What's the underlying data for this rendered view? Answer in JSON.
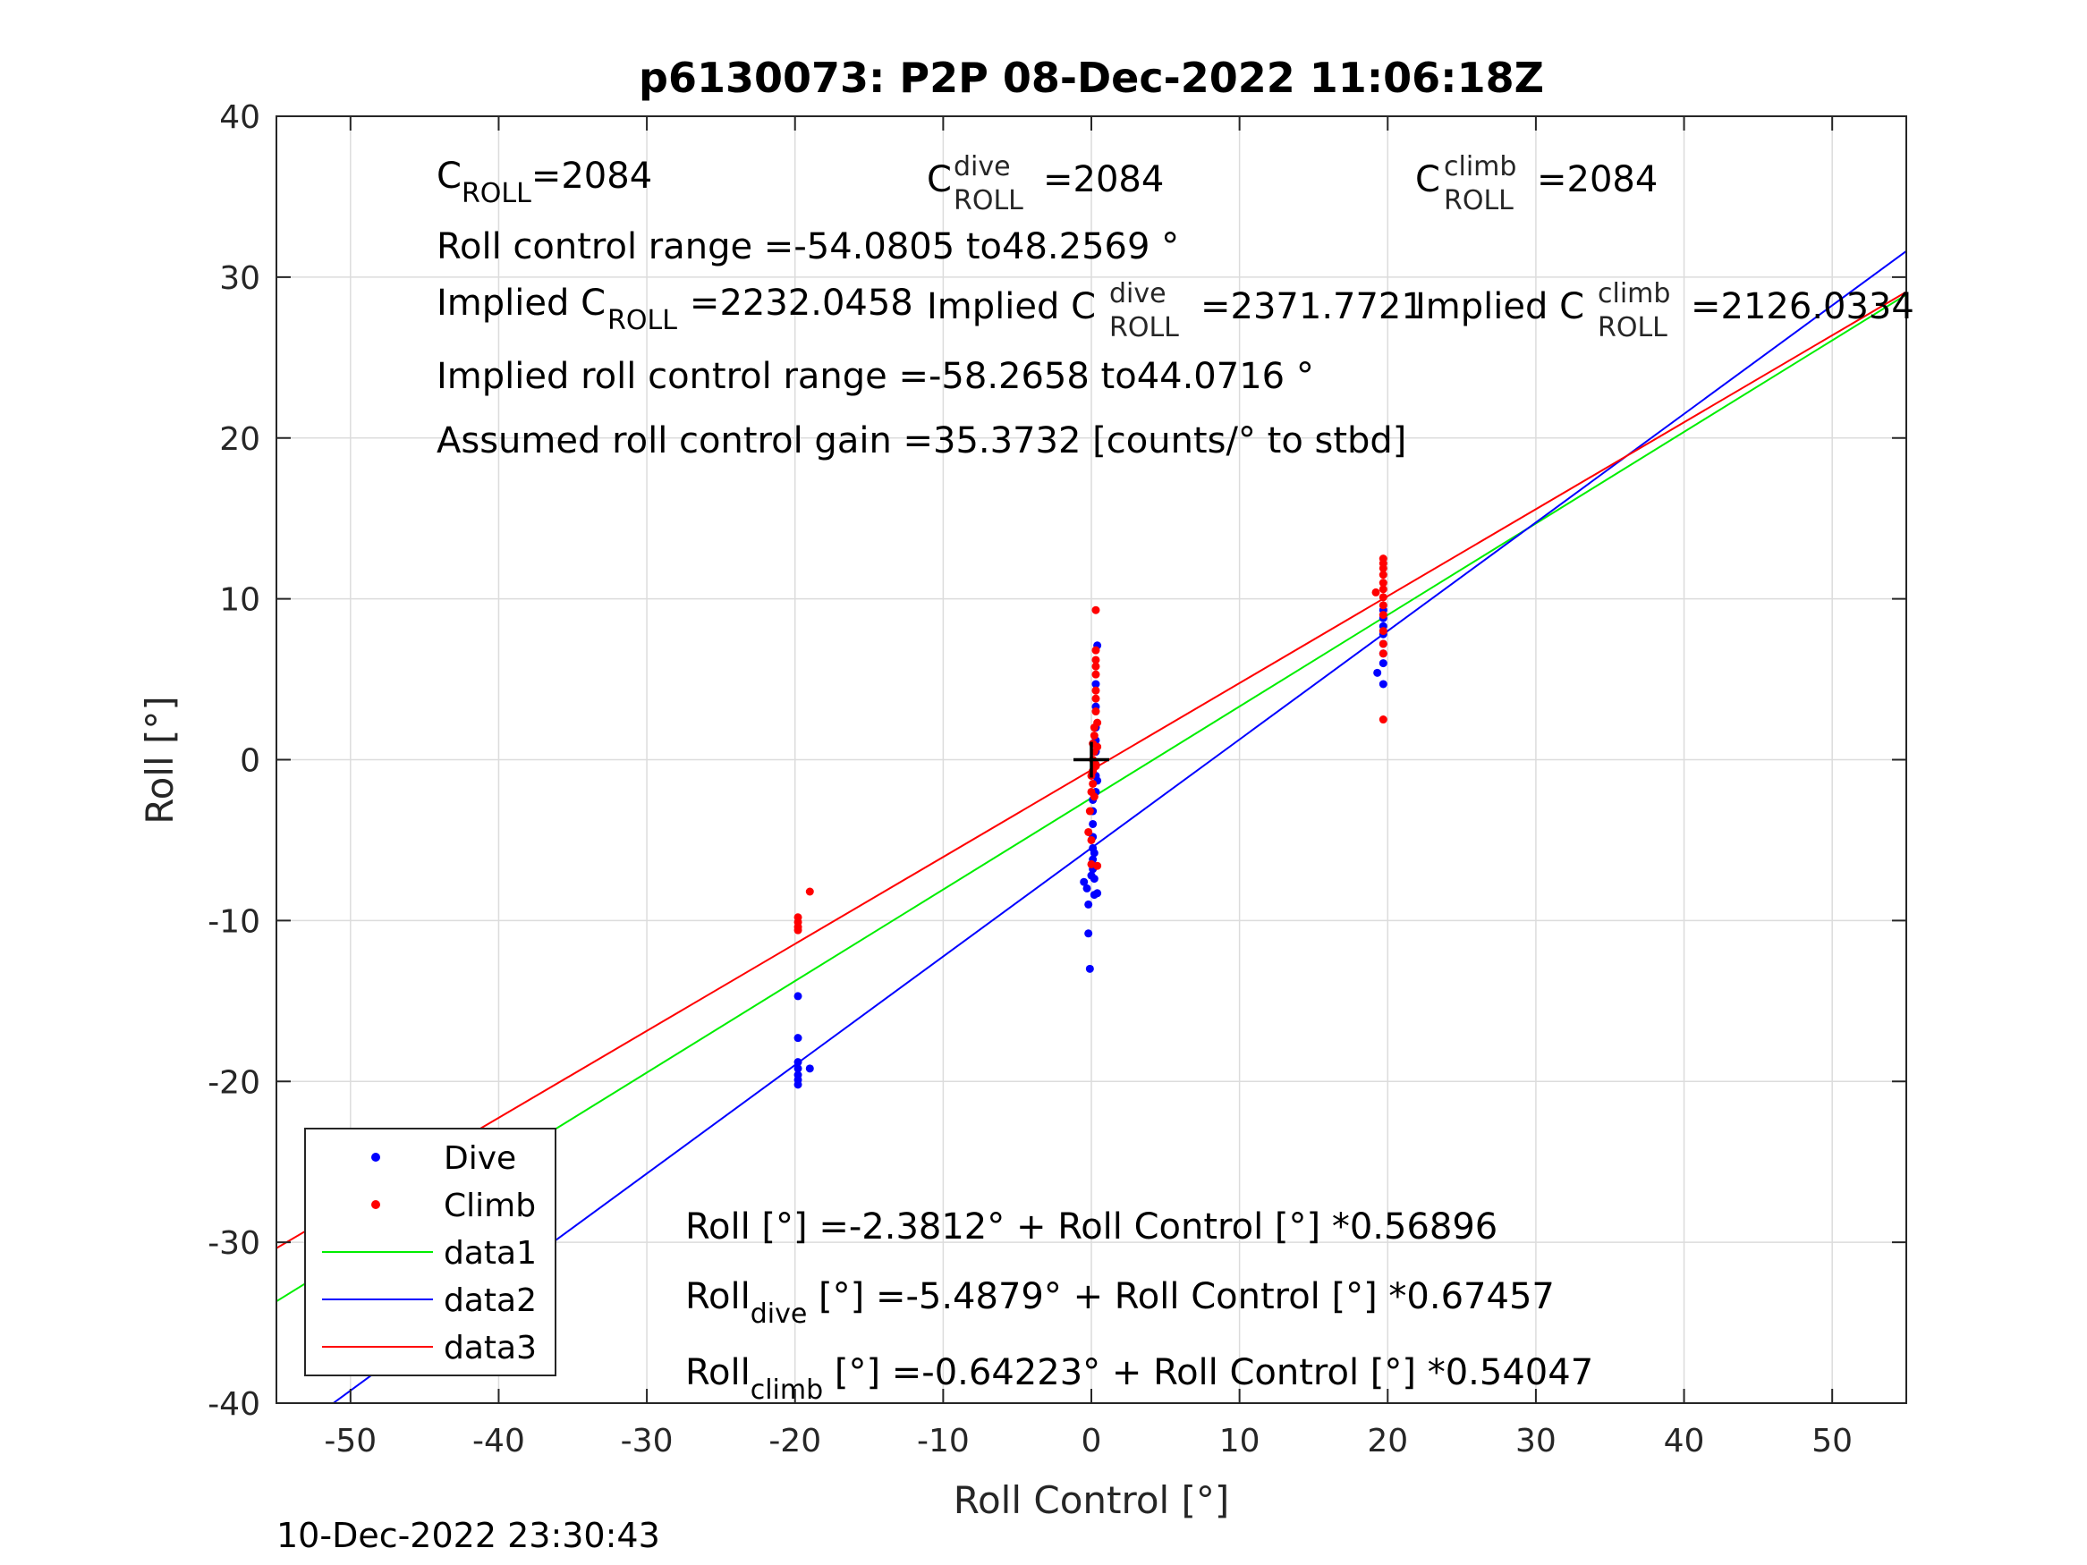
{
  "chart_data": {
    "type": "scatter",
    "title": "p6130073: P2P 08-Dec-2022 11:06:18Z",
    "xlabel": "Roll Control [°]",
    "ylabel": "Roll [°]",
    "xlim": [
      -55,
      55
    ],
    "ylim": [
      -40,
      40
    ],
    "xticks": [
      -50,
      -40,
      -30,
      -20,
      -10,
      0,
      10,
      20,
      30,
      40,
      50
    ],
    "yticks": [
      -40,
      -30,
      -20,
      -10,
      0,
      10,
      20,
      30,
      40
    ],
    "grid": true,
    "legend_position": "bottom-left",
    "footer": "10-Dec-2022 23:30:43",
    "colors": {
      "dive": "#0000ff",
      "climb": "#ff0000",
      "data1": "#00ee00",
      "data2": "#0000ff",
      "data3": "#ff0000",
      "origin": "#000000"
    },
    "series": [
      {
        "name": "Dive",
        "kind": "points",
        "color": "#0000ff",
        "points": [
          [
            -19.8,
            -14.7
          ],
          [
            -19.8,
            -17.3
          ],
          [
            -19.8,
            -18.8
          ],
          [
            -19.8,
            -19.2
          ],
          [
            -19.8,
            -19.6
          ],
          [
            -19.8,
            -19.9
          ],
          [
            -19.8,
            -20.2
          ],
          [
            -19.0,
            -19.2
          ],
          [
            -0.5,
            -7.6
          ],
          [
            -0.3,
            -8.0
          ],
          [
            -0.2,
            -9.0
          ],
          [
            -0.2,
            -10.8
          ],
          [
            -0.1,
            -13.0
          ],
          [
            0.0,
            -7.2
          ],
          [
            0.1,
            -6.8
          ],
          [
            0.1,
            -6.2
          ],
          [
            0.1,
            -5.5
          ],
          [
            0.1,
            -4.8
          ],
          [
            0.1,
            -4.0
          ],
          [
            0.1,
            -3.2
          ],
          [
            0.1,
            -2.5
          ],
          [
            0.2,
            -7.4
          ],
          [
            0.2,
            -8.4
          ],
          [
            0.2,
            -5.8
          ],
          [
            0.3,
            -2.0
          ],
          [
            0.3,
            -1.0
          ],
          [
            0.3,
            -0.3
          ],
          [
            0.3,
            0.5
          ],
          [
            0.3,
            1.2
          ],
          [
            0.3,
            2.0
          ],
          [
            0.3,
            3.3
          ],
          [
            0.3,
            4.7
          ],
          [
            0.4,
            7.1
          ],
          [
            0.4,
            -1.3
          ],
          [
            0.4,
            -8.3
          ],
          [
            19.3,
            5.4
          ],
          [
            19.7,
            4.7
          ],
          [
            19.7,
            6.0
          ],
          [
            19.7,
            6.6
          ],
          [
            19.7,
            7.2
          ],
          [
            19.7,
            7.8
          ],
          [
            19.7,
            8.3
          ],
          [
            19.7,
            8.8
          ],
          [
            19.7,
            9.3
          ]
        ]
      },
      {
        "name": "Climb",
        "kind": "points",
        "color": "#ff0000",
        "points": [
          [
            -19.8,
            -9.8
          ],
          [
            -19.8,
            -10.1
          ],
          [
            -19.8,
            -10.4
          ],
          [
            -19.8,
            -10.6
          ],
          [
            -19.0,
            -8.2
          ],
          [
            -0.2,
            -4.5
          ],
          [
            -0.1,
            -3.2
          ],
          [
            0.0,
            -5.0
          ],
          [
            0.0,
            -2.0
          ],
          [
            0.0,
            -1.0
          ],
          [
            0.0,
            -6.5
          ],
          [
            0.1,
            0.0
          ],
          [
            0.1,
            -0.7
          ],
          [
            0.1,
            1.0
          ],
          [
            0.1,
            -1.5
          ],
          [
            0.2,
            2.0
          ],
          [
            0.2,
            0.5
          ],
          [
            0.2,
            -2.3
          ],
          [
            0.2,
            1.5
          ],
          [
            0.3,
            3.0
          ],
          [
            0.3,
            4.3
          ],
          [
            0.3,
            5.3
          ],
          [
            0.3,
            3.8
          ],
          [
            0.3,
            -0.4
          ],
          [
            0.3,
            -0.3
          ],
          [
            0.3,
            5.8
          ],
          [
            0.3,
            6.2
          ],
          [
            0.3,
            6.8
          ],
          [
            0.3,
            9.3
          ],
          [
            0.4,
            2.3
          ],
          [
            0.4,
            0.8
          ],
          [
            0.4,
            -6.6
          ],
          [
            19.2,
            10.4
          ],
          [
            19.7,
            2.5
          ],
          [
            19.7,
            6.6
          ],
          [
            19.7,
            7.2
          ],
          [
            19.7,
            8.0
          ],
          [
            19.7,
            9.0
          ],
          [
            19.7,
            9.6
          ],
          [
            19.7,
            10.1
          ],
          [
            19.7,
            10.6
          ],
          [
            19.7,
            11.0
          ],
          [
            19.7,
            11.5
          ],
          [
            19.7,
            11.9
          ],
          [
            19.7,
            12.2
          ],
          [
            19.7,
            12.5
          ]
        ]
      },
      {
        "name": "data1",
        "kind": "line",
        "color": "#00ee00",
        "intercept": -2.3812,
        "slope": 0.56896
      },
      {
        "name": "data2",
        "kind": "line",
        "color": "#0000ff",
        "intercept": -5.4879,
        "slope": 0.67457
      },
      {
        "name": "data3",
        "kind": "line",
        "color": "#ff0000",
        "intercept": -0.64223,
        "slope": 0.54047
      }
    ],
    "origin_marker": [
      0,
      0
    ],
    "annotations": {
      "c_roll_base": "C",
      "c_roll_sub": "ROLL",
      "c_roll_val": "=2084",
      "c_dive_base": "C",
      "c_dive_sup": "dive",
      "c_dive_sub": "ROLL",
      "c_dive_val": "=2084",
      "c_climb_base": "C",
      "c_climb_sup": "climb",
      "c_climb_sub": "ROLL",
      "c_climb_val": "=2084",
      "control_range": "Roll control range =-54.0805 to48.2569 °",
      "implied_c_base": "Implied C",
      "implied_c_sub": "ROLL",
      "implied_c_val": "=2232.0458",
      "implied_dive_base": "Implied C",
      "implied_dive_sup": "dive",
      "implied_dive_sub": "ROLL",
      "implied_dive_val": "=2371.7721",
      "implied_climb_base": "Implied C",
      "implied_climb_sup": "climb",
      "implied_climb_sub": "ROLL",
      "implied_climb_val": "=2126.0334",
      "implied_range": "Implied roll control range =-58.2658 to44.0716 °",
      "assumed_gain": "Assumed roll control gain =35.3732 [counts/° to stbd]",
      "eq1": "Roll [°] =-2.3812° + Roll Control [°] *0.56896",
      "eq2_base": "Roll",
      "eq2_sub": "dive",
      "eq2_rest": " [°] =-5.4879° + Roll Control [°] *0.67457",
      "eq3_base": "Roll",
      "eq3_sub": "climb",
      "eq3_rest": " [°] =-0.64223° + Roll Control [°] *0.54047"
    }
  }
}
